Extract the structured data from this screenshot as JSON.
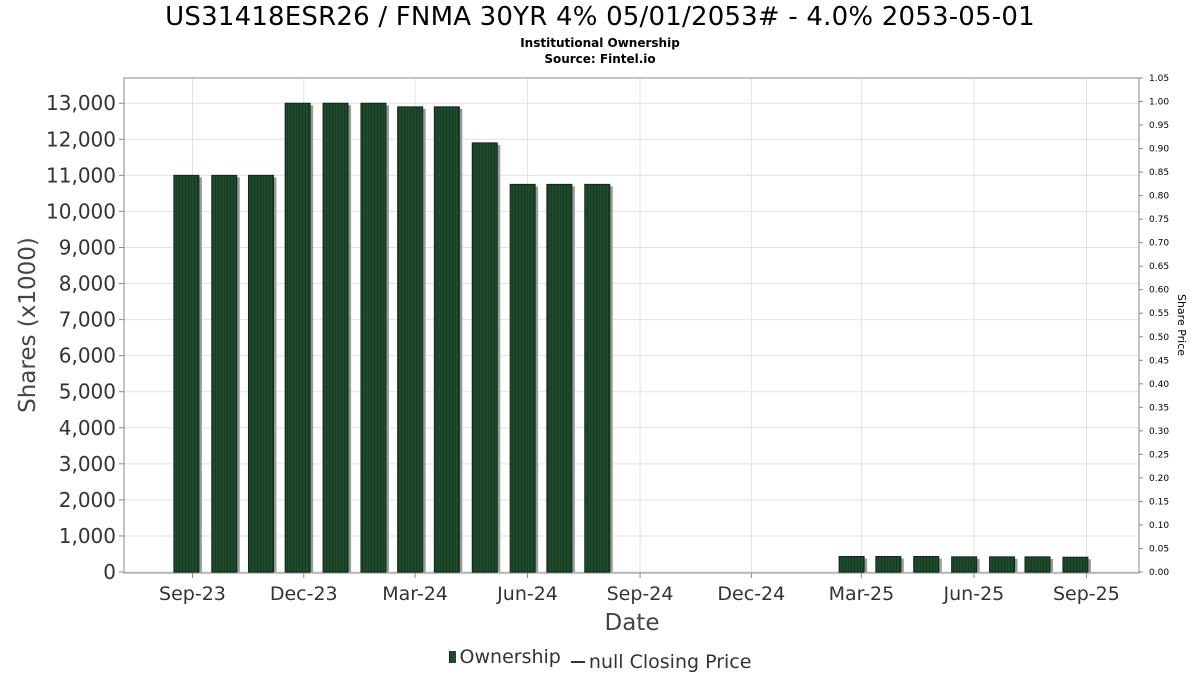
{
  "chart_data": {
    "type": "bar",
    "title": "US31418ESR26 / FNMA 30YR 4% 05/01/2053# - 4.0% 2053-05-01",
    "subtitle": "Institutional Ownership",
    "source": "Source: Fintel.io",
    "xlabel": "Date",
    "ylabel": "Shares (x1000)",
    "ylabel_right": "Share Price",
    "ylim": [
      0,
      13700
    ],
    "ylim_right": [
      0,
      1.05
    ],
    "y_ticks": [
      0,
      1000,
      2000,
      3000,
      4000,
      5000,
      6000,
      7000,
      8000,
      9000,
      10000,
      11000,
      12000,
      13000
    ],
    "y_tick_labels": [
      "0",
      "1,000",
      "2,000",
      "3,000",
      "4,000",
      "5,000",
      "6,000",
      "7,000",
      "8,000",
      "9,000",
      "10,000",
      "11,000",
      "12,000",
      "13,000"
    ],
    "y_right_tick_labels": [
      "0.00",
      "0.05",
      "0.10",
      "0.15",
      "0.20",
      "0.25",
      "0.30",
      "0.35",
      "0.40",
      "0.45",
      "0.50",
      "0.55",
      "0.60",
      "0.65",
      "0.70",
      "0.75",
      "0.80",
      "0.85",
      "0.90",
      "0.95",
      "1.00",
      "1.05"
    ],
    "x_range": [
      "2023-07-07",
      "2025-10-14"
    ],
    "x_ticks": [
      "2023-09-01",
      "2023-12-01",
      "2024-03-01",
      "2024-06-01",
      "2024-09-01",
      "2024-12-01",
      "2025-03-01",
      "2025-06-01",
      "2025-09-01"
    ],
    "x_tick_labels": [
      "Sep-23",
      "Dec-23",
      "Mar-24",
      "Jun-24",
      "Sep-24",
      "Dec-24",
      "Mar-25",
      "Jun-25",
      "Sep-25"
    ],
    "grid": true,
    "legend_position": "bottom",
    "series": [
      {
        "name": "Ownership",
        "color": "#1f4a2e",
        "points": [
          {
            "date": "2023-08-27",
            "value": 11000
          },
          {
            "date": "2023-09-27",
            "value": 11000
          },
          {
            "date": "2023-10-27",
            "value": 11000
          },
          {
            "date": "2023-11-26",
            "value": 13000
          },
          {
            "date": "2023-12-27",
            "value": 13000
          },
          {
            "date": "2024-01-27",
            "value": 13000
          },
          {
            "date": "2024-02-26",
            "value": 12900
          },
          {
            "date": "2024-03-27",
            "value": 12900
          },
          {
            "date": "2024-04-27",
            "value": 11900
          },
          {
            "date": "2024-05-28",
            "value": 10750
          },
          {
            "date": "2024-06-27",
            "value": 10750
          },
          {
            "date": "2024-07-28",
            "value": 10750
          },
          {
            "date": "2025-02-21",
            "value": 430
          },
          {
            "date": "2025-03-23",
            "value": 430
          },
          {
            "date": "2025-04-23",
            "value": 430
          },
          {
            "date": "2025-05-24",
            "value": 420
          },
          {
            "date": "2025-06-24",
            "value": 420
          },
          {
            "date": "2025-07-23",
            "value": 420
          },
          {
            "date": "2025-08-23",
            "value": 410
          }
        ]
      },
      {
        "name": "null Closing Price",
        "color": "#333333",
        "points": []
      }
    ]
  }
}
